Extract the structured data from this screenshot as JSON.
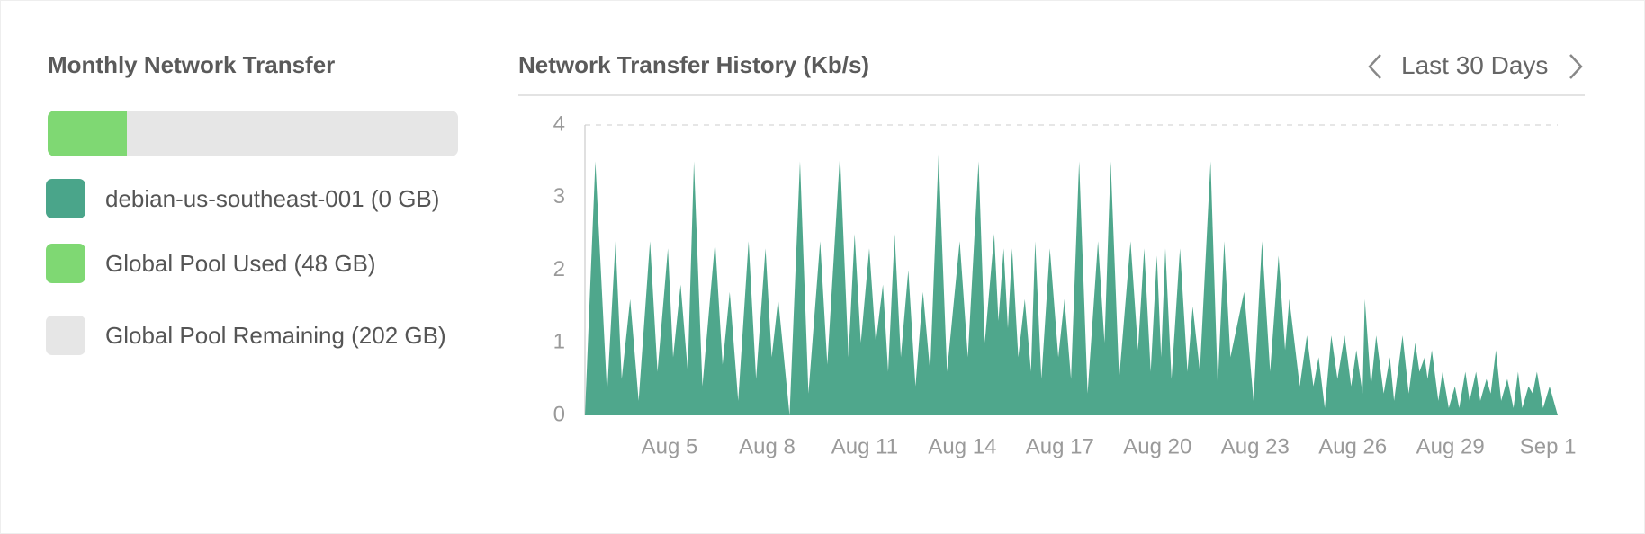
{
  "transfer_panel": {
    "title": "Monthly Network Transfer",
    "items": [
      {
        "label": "debian-us-southeast-001 (0 GB)",
        "value": 0,
        "color": "#4aa58a"
      },
      {
        "label": "Global Pool Used (48 GB)",
        "value": 48,
        "color": "#7fd873"
      },
      {
        "label": "Global Pool Remaining (202 GB)",
        "value": 202,
        "color": "#e6e6e6"
      }
    ]
  },
  "history_nav": {
    "range": "Last 30 Days"
  },
  "chart_data": {
    "type": "area",
    "title": "Network Transfer History (Kb/s)",
    "x": [
      2.4,
      2.72,
      3.08,
      3.34,
      3.53,
      3.79,
      4.05,
      4.4,
      4.63,
      4.95,
      5.11,
      5.34,
      5.56,
      5.75,
      6.01,
      6.4,
      6.63,
      6.85,
      7.11,
      7.43,
      7.66,
      7.95,
      8.14,
      8.34,
      8.69,
      9.01,
      9.27,
      9.63,
      9.85,
      10.24,
      10.5,
      10.69,
      10.88,
      11.14,
      11.34,
      11.56,
      11.72,
      11.92,
      12.11,
      12.34,
      12.56,
      12.79,
      13.01,
      13.27,
      13.53,
      13.92,
      14.17,
      14.5,
      14.69,
      14.98,
      15.11,
      15.27,
      15.4,
      15.53,
      15.72,
      15.92,
      16.11,
      16.24,
      16.43,
      16.69,
      16.95,
      17.14,
      17.34,
      17.59,
      17.85,
      18.17,
      18.37,
      18.56,
      18.82,
      19.17,
      19.4,
      19.59,
      19.79,
      19.98,
      20.11,
      20.24,
      20.43,
      20.69,
      20.92,
      21.08,
      21.3,
      21.63,
      21.85,
      22.05,
      22.24,
      22.66,
      22.95,
      23.21,
      23.46,
      23.72,
      23.92,
      24.05,
      24.37,
      24.59,
      24.79,
      24.95,
      25.14,
      25.34,
      25.53,
      25.75,
      25.95,
      26.11,
      26.3,
      26.37,
      26.56,
      26.72,
      26.95,
      27.14,
      27.27,
      27.53,
      27.72,
      27.92,
      28.05,
      28.21,
      28.3,
      28.43,
      28.63,
      28.76,
      28.95,
      29.14,
      29.27,
      29.46,
      29.59,
      29.79,
      29.92,
      30.11,
      30.24,
      30.4,
      30.56,
      30.75,
      30.94,
      31.08,
      31.21,
      31.4,
      31.53,
      31.66,
      31.85,
      32.05,
      32.3
    ],
    "series": [
      {
        "color": "#4fa78c",
        "values": [
          0,
          3.5,
          0.3,
          2.4,
          0.5,
          1.6,
          0.2,
          2.4,
          0.6,
          2.3,
          0.8,
          1.8,
          0.6,
          3.5,
          0.4,
          2.4,
          0.7,
          1.7,
          0.2,
          2.4,
          0.5,
          2.3,
          0.8,
          1.6,
          0,
          3.5,
          0.3,
          2.4,
          0.7,
          3.6,
          0.8,
          2.5,
          1.0,
          2.3,
          1.0,
          1.8,
          0.6,
          2.5,
          0.8,
          2.0,
          0.4,
          1.7,
          0.6,
          3.6,
          0.6,
          2.4,
          0.8,
          3.5,
          1.0,
          2.5,
          1.3,
          2.3,
          1.2,
          2.3,
          0.8,
          1.6,
          0.6,
          2.4,
          0.5,
          2.3,
          0.8,
          1.6,
          0.5,
          3.5,
          0.3,
          2.4,
          1.0,
          3.5,
          0.5,
          2.4,
          0.9,
          2.3,
          0.6,
          2.2,
          0.8,
          2.3,
          0.5,
          2.3,
          0.6,
          1.5,
          0.6,
          3.5,
          0.4,
          2.4,
          0.8,
          1.7,
          0.2,
          2.4,
          0.6,
          2.2,
          0.9,
          1.6,
          0.4,
          1.1,
          0.4,
          0.8,
          0.1,
          1.1,
          0.5,
          1.1,
          0.4,
          0.9,
          0.3,
          1.6,
          0.4,
          1.1,
          0.3,
          0.8,
          0.2,
          1.1,
          0.3,
          1.0,
          0.6,
          0.8,
          0.5,
          0.9,
          0.2,
          0.6,
          0.1,
          0.4,
          0.1,
          0.6,
          0.2,
          0.6,
          0.2,
          0.5,
          0.3,
          0.9,
          0.2,
          0.5,
          0.1,
          0.6,
          0.1,
          0.4,
          0.3,
          0.6,
          0.1,
          0.4,
          0
        ]
      }
    ],
    "xlim": [
      2.4,
      32.3
    ],
    "xticks": [
      {
        "value": 5,
        "label": "Aug 5"
      },
      {
        "value": 8,
        "label": "Aug 8"
      },
      {
        "value": 11,
        "label": "Aug 11"
      },
      {
        "value": 14,
        "label": "Aug 14"
      },
      {
        "value": 17,
        "label": "Aug 17"
      },
      {
        "value": 20,
        "label": "Aug 20"
      },
      {
        "value": 23,
        "label": "Aug 23"
      },
      {
        "value": 26,
        "label": "Aug 26"
      },
      {
        "value": 29,
        "label": "Aug 29"
      },
      {
        "value": 32,
        "label": "Sep 1"
      }
    ],
    "ylim": [
      0,
      4
    ],
    "yticks": [
      0,
      1,
      2,
      3,
      4
    ],
    "grid": false
  }
}
